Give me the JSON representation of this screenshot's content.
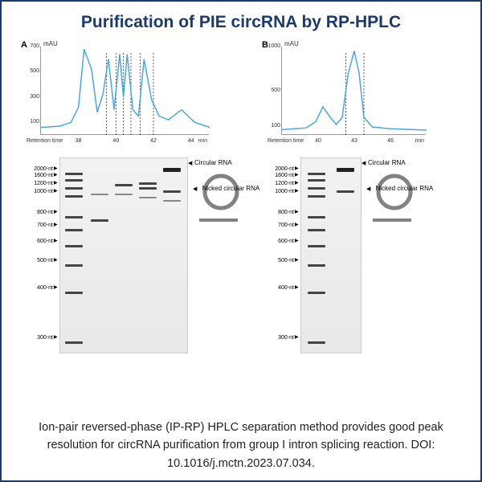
{
  "title": "Purification of PIE circRNA by RP-HPLC",
  "caption": "Ion-pair reversed-phase (IP-RP) HPLC separation method provides good peak resolution for circRNA purification from group I intron splicing reaction. DOI: 10.1016/j.mctn.2023.07.034.",
  "panelA": {
    "label": "A",
    "chromatogram": {
      "type": "line",
      "y_unit": "mAU",
      "ylim": [
        0,
        700
      ],
      "yticks": [
        100,
        300,
        500,
        700
      ],
      "xlim": [
        36,
        45
      ],
      "xticks": [
        38,
        40,
        42,
        44
      ],
      "x_label_left": "Retention  time",
      "x_label_right": "min",
      "trace_color": "#4aa8e0",
      "background_color": "#ffffff",
      "points": [
        [
          36,
          60
        ],
        [
          37,
          70
        ],
        [
          37.6,
          100
        ],
        [
          38,
          220
        ],
        [
          38.3,
          680
        ],
        [
          38.7,
          520
        ],
        [
          39,
          180
        ],
        [
          39.3,
          320
        ],
        [
          39.6,
          600
        ],
        [
          39.9,
          200
        ],
        [
          40.2,
          640
        ],
        [
          40.4,
          300
        ],
        [
          40.6,
          640
        ],
        [
          40.9,
          200
        ],
        [
          41.2,
          150
        ],
        [
          41.5,
          600
        ],
        [
          41.9,
          280
        ],
        [
          42.3,
          150
        ],
        [
          42.8,
          120
        ],
        [
          43.5,
          200
        ],
        [
          44.2,
          100
        ],
        [
          45,
          60
        ]
      ],
      "dashed_x": [
        39.5,
        40.0,
        40.4,
        40.8,
        41.3,
        42.0
      ]
    },
    "gel": {
      "ladder_nt": [
        2000,
        1600,
        1200,
        1000,
        800,
        700,
        600,
        500,
        400,
        300
      ],
      "ladder_y": [
        14,
        22,
        32,
        42,
        68,
        84,
        104,
        128,
        162,
        224
      ],
      "lanes": 5,
      "annotations": {
        "circular_rna": "Circular RNA",
        "nicked_rna": "Nicked circular RNA"
      }
    }
  },
  "panelB": {
    "label": "B",
    "chromatogram": {
      "type": "line",
      "y_unit": "mAU",
      "ylim": [
        0,
        1000
      ],
      "yticks": [
        100,
        500,
        1000
      ],
      "xlim": [
        37,
        49
      ],
      "xticks": [
        40,
        43,
        46
      ],
      "x_label_left": "Retention  time",
      "x_label_right": "min",
      "trace_color": "#4aa8e0",
      "background_color": "#ffffff",
      "points": [
        [
          37,
          60
        ],
        [
          38,
          70
        ],
        [
          39,
          80
        ],
        [
          39.8,
          150
        ],
        [
          40.4,
          320
        ],
        [
          41,
          200
        ],
        [
          41.5,
          120
        ],
        [
          42,
          200
        ],
        [
          42.5,
          700
        ],
        [
          43,
          950
        ],
        [
          43.4,
          700
        ],
        [
          43.8,
          200
        ],
        [
          44.5,
          90
        ],
        [
          46,
          70
        ],
        [
          48,
          60
        ],
        [
          49,
          55
        ]
      ],
      "dashed_x": [
        42.3,
        43.8
      ]
    },
    "gel": {
      "ladder_nt": [
        2000,
        1600,
        1200,
        1000,
        800,
        700,
        600,
        500,
        400,
        300
      ],
      "ladder_y": [
        14,
        22,
        32,
        42,
        68,
        84,
        104,
        128,
        162,
        224
      ],
      "lanes": 2,
      "annotations": {
        "circular_rna": "Circular RNA",
        "nicked_rna": "Nicked circular RNA"
      }
    }
  }
}
